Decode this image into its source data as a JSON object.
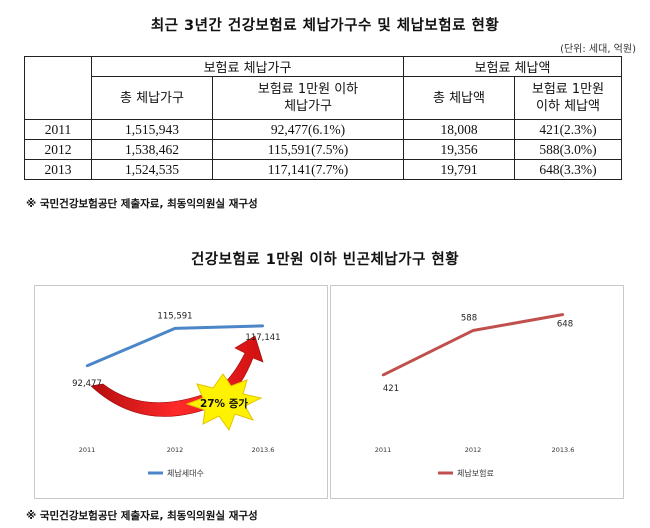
{
  "title": "최근 3년간 건강보험료 체납가구수 및 체납보험료 현황",
  "unit": "(단위: 세대, 억원)",
  "table": {
    "group_headers": [
      "보험료 체납가구",
      "보험료 체납액"
    ],
    "sub_headers": [
      [
        "총 체납가구"
      ],
      [
        "보험료 1만원 이하",
        "체납가구"
      ],
      [
        "총 체납액"
      ],
      [
        "보험료 1만원",
        "이하 체납액"
      ]
    ],
    "rows": [
      [
        "2011",
        "1,515,943",
        "92,477(6.1%)",
        "18,008",
        "421(2.3%)"
      ],
      [
        "2012",
        "1,538,462",
        "115,591(7.5%)",
        "19,356",
        "588(3.0%)"
      ],
      [
        "2013",
        "1,524,535",
        "117,141(7.7%)",
        "19,791",
        "648(3.3%)"
      ]
    ]
  },
  "source_note": "※ 국민건강보험공단 제출자료, 최동익의원실 재구성",
  "section_title": "건강보험료 1만원 이하 빈곤체납가구 현황",
  "colors": {
    "blue": "#4a86c8",
    "red": "#c0504d",
    "arrow_red": "#e21a1a",
    "burst": "#fff200"
  },
  "chart_data": [
    {
      "type": "line",
      "categories": [
        "2011",
        "2012",
        "2013.6"
      ],
      "series": [
        {
          "name": "체납세대수",
          "values": [
            92477,
            115591,
            117141
          ],
          "color": "#4a86c8"
        }
      ],
      "data_labels": [
        "92,477",
        "115,591",
        "117,141"
      ],
      "annotation": "27% 증가",
      "legend": "bottom"
    },
    {
      "type": "line",
      "categories": [
        "2011",
        "2012",
        "2013.6"
      ],
      "series": [
        {
          "name": "체납보험료",
          "values": [
            421,
            588,
            648
          ],
          "color": "#c0504d"
        }
      ],
      "data_labels": [
        "421",
        "588",
        "648"
      ],
      "legend": "bottom"
    }
  ],
  "footer_note": "※ 국민건강보험공단 제출자료, 최동익의원실 재구성"
}
